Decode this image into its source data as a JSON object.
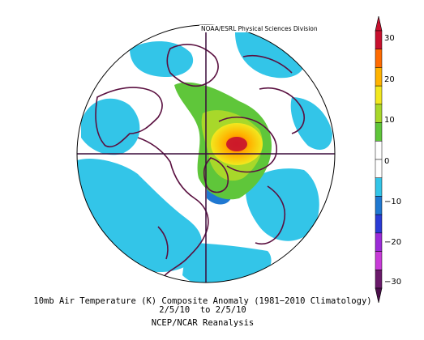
{
  "map": {
    "credit": "NOAA/ESRL Physical Sciences Division",
    "projection": "north-polar-stereographic",
    "anomaly_regions": [
      {
        "name": "warm-core",
        "level": "30"
      },
      {
        "name": "moderate-warm",
        "level": "20"
      },
      {
        "name": "light-warm",
        "level": "10"
      },
      {
        "name": "cold",
        "level": "-10"
      }
    ]
  },
  "colorbar": {
    "labels": [
      "30",
      "20",
      "10",
      "0",
      "−10",
      "−20",
      "−30"
    ],
    "colors": [
      "#c8102e",
      "#ff6a00",
      "#ffb300",
      "#f2e81f",
      "#a8d82a",
      "#5fc63a",
      "#ffffff",
      "#ffffff",
      "#33c5e8",
      "#1f78d1",
      "#2a3bd6",
      "#9b2bd8",
      "#c83bd8",
      "#6a1a6a"
    ]
  },
  "caption": {
    "line1": "10mb Air Temperature (K) Composite Anomaly (1981−2010 Climatology)",
    "line2": "2/5/10  to 2/5/10",
    "line3": "NCEP/NCAR Reanalysis"
  }
}
